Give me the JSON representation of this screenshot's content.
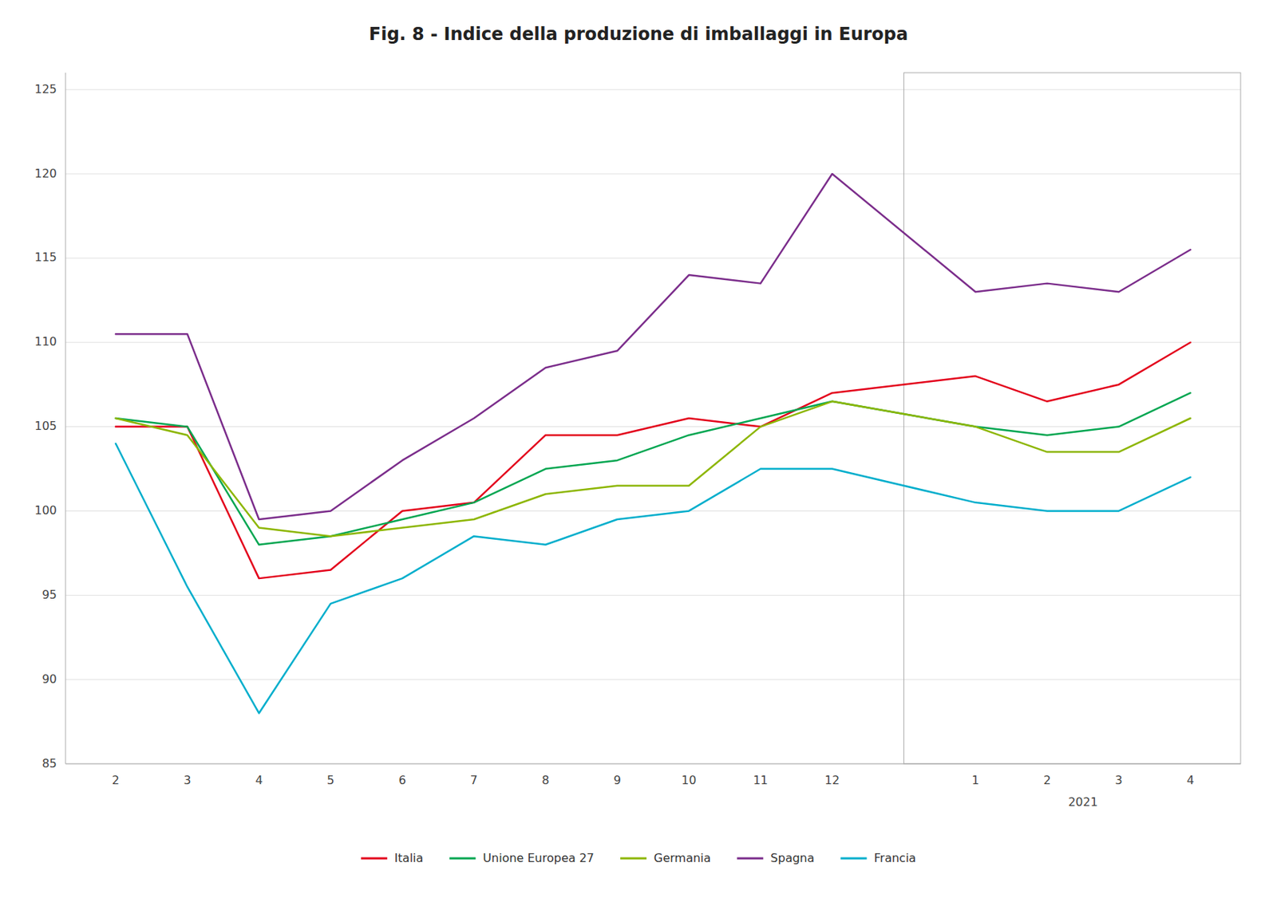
{
  "chart_data": {
    "type": "line",
    "title": "Fig. 8 - Indice della produzione di imballaggi in Europa",
    "categories": [
      "2",
      "3",
      "4",
      "5",
      "6",
      "7",
      "8",
      "9",
      "10",
      "11",
      "12",
      "1",
      "2",
      "3",
      "4"
    ],
    "annotations": [
      "2021"
    ],
    "series": [
      {
        "name": "Italia",
        "color": "#e3001b",
        "values": [
          105.0,
          105.0,
          96.0,
          96.5,
          100.0,
          100.5,
          104.5,
          104.5,
          105.5,
          105.0,
          107.0,
          108.0,
          106.5,
          107.5,
          110.0
        ]
      },
      {
        "name": "Unione Europea 27",
        "color": "#00a651",
        "values": [
          105.5,
          105.0,
          98.0,
          98.5,
          99.5,
          100.5,
          102.5,
          103.0,
          104.5,
          105.5,
          106.5,
          105.0,
          104.5,
          105.0,
          107.0
        ]
      },
      {
        "name": "Germania",
        "color": "#8db600",
        "values": [
          105.5,
          104.5,
          99.0,
          98.5,
          99.0,
          99.5,
          101.0,
          101.5,
          101.5,
          105.0,
          106.5,
          105.0,
          103.5,
          103.5,
          105.5
        ]
      },
      {
        "name": "Spagna",
        "color": "#7b2d8b",
        "values": [
          110.5,
          110.5,
          99.5,
          100.0,
          103.0,
          105.5,
          108.5,
          109.5,
          114.0,
          113.5,
          120.0,
          113.0,
          113.5,
          113.0,
          115.5
        ]
      },
      {
        "name": "Francia",
        "color": "#00aecc",
        "values": [
          104.0,
          95.5,
          88.0,
          94.5,
          96.0,
          98.5,
          98.0,
          99.5,
          100.0,
          102.5,
          102.5,
          100.5,
          100.0,
          100.0,
          102.0
        ]
      }
    ],
    "ylim": [
      85,
      126
    ],
    "yticks": [
      85,
      90,
      95,
      100,
      105,
      110,
      115,
      120,
      125
    ],
    "grid": true,
    "legend": "bottom"
  }
}
